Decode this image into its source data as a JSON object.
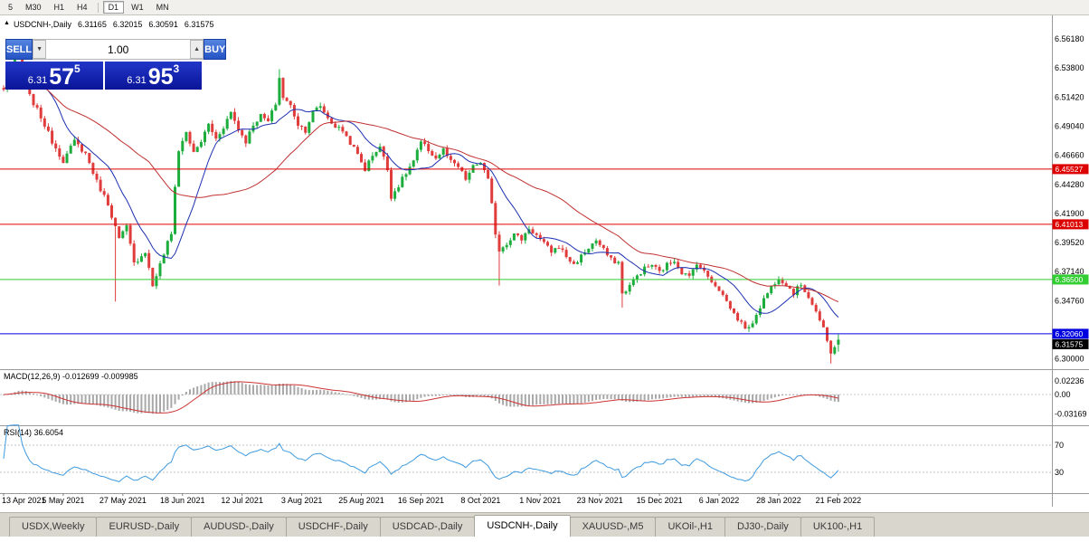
{
  "toolbar": {
    "timeframes": [
      "5",
      "M30",
      "H1",
      "H4",
      "D1",
      "W1",
      "MN"
    ],
    "separator_after": "H4",
    "active": "D1"
  },
  "chart": {
    "symbol_header": {
      "expander": "▲",
      "title": "USDCNH-,Daily",
      "open": "6.31165",
      "high": "6.32015",
      "low": "6.30591",
      "close": "6.31575"
    },
    "trade_panel": {
      "sell_label": "SELL",
      "buy_label": "BUY",
      "volume": "1.00",
      "down_arrow": "▼",
      "up_arrow": "▲",
      "sell_price": {
        "big_prefix": "6.31",
        "big": "57",
        "sup": "5"
      },
      "buy_price": {
        "big_prefix": "6.31",
        "big": "95",
        "sup": "3"
      }
    },
    "y_axis_labels": [
      "6.56180",
      "6.53800",
      "6.51420",
      "6.49040",
      "6.46660",
      "6.44280",
      "6.41900",
      "6.39520",
      "6.37140",
      "6.34760",
      "6.30000"
    ],
    "levels": [
      {
        "price": "6.45527",
        "color": "#DD0000"
      },
      {
        "price": "6.41013",
        "color": "#DD0000"
      },
      {
        "price": "6.36500",
        "color": "#32CD32"
      },
      {
        "price": "6.32060",
        "color": "#0000E0"
      }
    ],
    "current_price": {
      "value": "6.31575",
      "color": "#000000"
    },
    "macd": {
      "label": "MACD(12,26,9) -0.012699 -0.009985",
      "axis": [
        "0.02236",
        "0.00",
        "-0.03169"
      ]
    },
    "rsi": {
      "label": "RSI(14) 36.6054",
      "axis": [
        "70",
        "30"
      ]
    },
    "x_axis_dates": [
      "13 Apr 2021",
      "5 May 2021",
      "27 May 2021",
      "18 Jun 2021",
      "12 Jul 2021",
      "3 Aug 2021",
      "25 Aug 2021",
      "16 Sep 2021",
      "8 Oct 2021",
      "1 Nov 2021",
      "23 Nov 2021",
      "15 Dec 2021",
      "6 Jan 2022",
      "28 Jan 2022",
      "21 Feb 2022"
    ]
  },
  "chart_data": {
    "type": "candlestick",
    "symbol": "USDCNH",
    "timeframe": "Daily",
    "candle_count": 225,
    "visible_price_range": [
      6.2916,
      6.581
    ],
    "axis_step": 0.0238,
    "last_candle": {
      "open": 6.31165,
      "high": 6.32015,
      "low": 6.30591,
      "close": 6.31575
    },
    "horizontal_levels": [
      6.45527,
      6.41013,
      6.365,
      6.3206
    ],
    "bid_price": 6.31575,
    "price_anchors": [
      [
        0,
        6.52
      ],
      [
        2,
        6.535
      ],
      [
        4,
        6.552
      ],
      [
        7,
        6.515
      ],
      [
        10,
        6.498
      ],
      [
        13,
        6.478
      ],
      [
        16,
        6.462
      ],
      [
        19,
        6.478
      ],
      [
        22,
        6.468
      ],
      [
        25,
        6.445
      ],
      [
        28,
        6.427
      ],
      [
        31,
        6.398
      ],
      [
        33,
        6.408
      ],
      [
        35,
        6.378
      ],
      [
        38,
        6.388
      ],
      [
        40,
        6.36
      ],
      [
        42,
        6.377
      ],
      [
        44,
        6.395
      ],
      [
        45,
        6.402
      ],
      [
        46,
        6.442
      ],
      [
        47,
        6.47
      ],
      [
        49,
        6.486
      ],
      [
        51,
        6.468
      ],
      [
        53,
        6.478
      ],
      [
        55,
        6.492
      ],
      [
        57,
        6.48
      ],
      [
        59,
        6.49
      ],
      [
        61,
        6.502
      ],
      [
        63,
        6.488
      ],
      [
        65,
        6.478
      ],
      [
        67,
        6.492
      ],
      [
        69,
        6.499
      ],
      [
        71,
        6.494
      ],
      [
        73,
        6.509
      ],
      [
        74,
        6.53
      ],
      [
        75,
        6.514
      ],
      [
        77,
        6.507
      ],
      [
        79,
        6.492
      ],
      [
        81,
        6.487
      ],
      [
        83,
        6.502
      ],
      [
        85,
        6.507
      ],
      [
        87,
        6.497
      ],
      [
        89,
        6.49
      ],
      [
        91,
        6.487
      ],
      [
        93,
        6.477
      ],
      [
        95,
        6.467
      ],
      [
        97,
        6.455
      ],
      [
        99,
        6.467
      ],
      [
        101,
        6.474
      ],
      [
        103,
        6.455
      ],
      [
        104,
        6.433
      ],
      [
        106,
        6.442
      ],
      [
        108,
        6.452
      ],
      [
        110,
        6.462
      ],
      [
        112,
        6.477
      ],
      [
        114,
        6.471
      ],
      [
        116,
        6.464
      ],
      [
        118,
        6.471
      ],
      [
        120,
        6.461
      ],
      [
        122,
        6.457
      ],
      [
        124,
        6.447
      ],
      [
        126,
        6.457
      ],
      [
        128,
        6.461
      ],
      [
        130,
        6.446
      ],
      [
        131,
        6.426
      ],
      [
        132,
        6.403
      ],
      [
        133,
        6.389
      ],
      [
        135,
        6.395
      ],
      [
        137,
        6.402
      ],
      [
        139,
        6.398
      ],
      [
        141,
        6.407
      ],
      [
        143,
        6.401
      ],
      [
        145,
        6.394
      ],
      [
        147,
        6.388
      ],
      [
        149,
        6.392
      ],
      [
        151,
        6.384
      ],
      [
        153,
        6.377
      ],
      [
        155,
        6.384
      ],
      [
        157,
        6.391
      ],
      [
        159,
        6.397
      ],
      [
        161,
        6.389
      ],
      [
        163,
        6.381
      ],
      [
        165,
        6.379
      ],
      [
        166,
        6.353
      ],
      [
        168,
        6.36
      ],
      [
        170,
        6.368
      ],
      [
        172,
        6.374
      ],
      [
        174,
        6.377
      ],
      [
        176,
        6.371
      ],
      [
        178,
        6.377
      ],
      [
        180,
        6.381
      ],
      [
        182,
        6.371
      ],
      [
        184,
        6.367
      ],
      [
        186,
        6.379
      ],
      [
        188,
        6.371
      ],
      [
        190,
        6.364
      ],
      [
        192,
        6.357
      ],
      [
        194,
        6.347
      ],
      [
        196,
        6.337
      ],
      [
        198,
        6.329
      ],
      [
        200,
        6.324
      ],
      [
        202,
        6.337
      ],
      [
        204,
        6.349
      ],
      [
        206,
        6.359
      ],
      [
        208,
        6.367
      ],
      [
        210,
        6.361
      ],
      [
        212,
        6.354
      ],
      [
        214,
        6.361
      ],
      [
        216,
        6.351
      ],
      [
        218,
        6.339
      ],
      [
        220,
        6.324
      ],
      [
        221,
        6.314
      ],
      [
        222,
        6.304
      ],
      [
        223,
        6.311
      ],
      [
        224,
        6.31575
      ]
    ],
    "forced_wicks": [
      [
        4,
        "h",
        6.5555
      ],
      [
        30,
        "l",
        6.347
      ],
      [
        74,
        "h",
        6.537
      ],
      [
        133,
        "l",
        6.36
      ],
      [
        166,
        "l",
        6.342
      ],
      [
        222,
        "l",
        6.2962
      ]
    ],
    "indicators": {
      "moving_averages": [
        {
          "period": 12,
          "color": "#1C2FB0"
        },
        {
          "period": 40,
          "color": "#C03030"
        }
      ],
      "macd": {
        "fast": 12,
        "slow": 26,
        "signal": 9,
        "last_main": -0.012699,
        "last_signal": -0.009985,
        "histogram_color": "#A8A8A8",
        "signal_color": "#CC3333",
        "axis_max": 0.02236,
        "axis_min": -0.03169
      },
      "rsi": {
        "period": 14,
        "last": 36.6054,
        "color": "#3E9ADE",
        "levels": [
          70,
          30
        ]
      }
    },
    "candle_up_color": "#1CAD3C",
    "candle_down_color": "#E03C3C"
  },
  "tabs": {
    "items": [
      "USDX,Weekly",
      "EURUSD-,Daily",
      "AUDUSD-,Daily",
      "USDCHF-,Daily",
      "USDCAD-,Daily",
      "USDCNH-,Daily",
      "XAUUSD-,M5",
      "UKOil-,H1",
      "DJ30-,Daily",
      "UK100-,H1"
    ],
    "active": "USDCNH-,Daily"
  }
}
